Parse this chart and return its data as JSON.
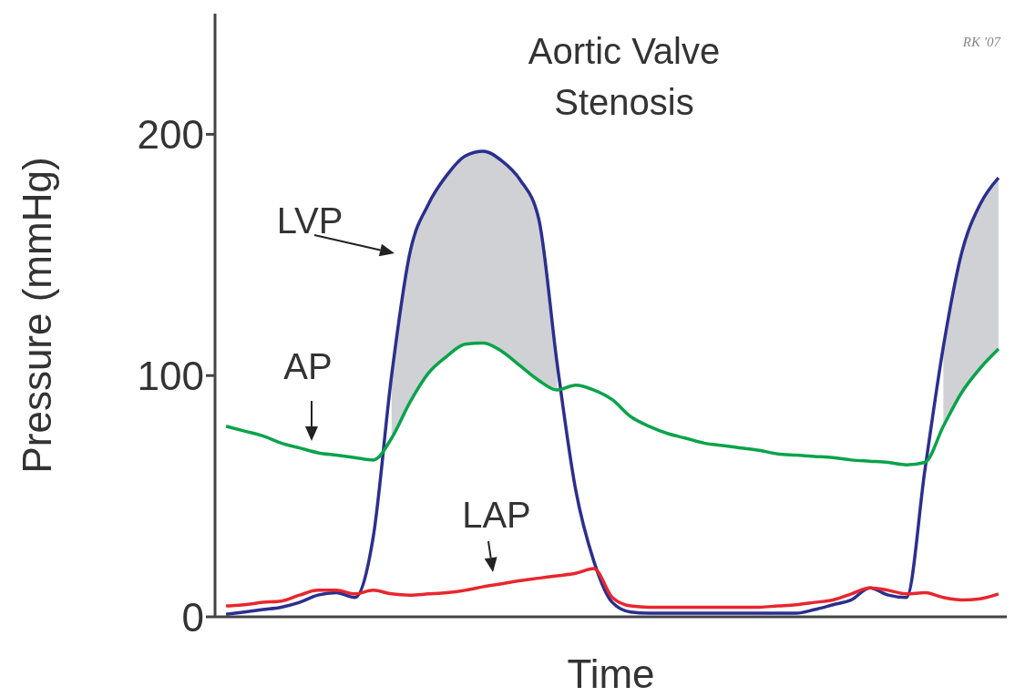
{
  "chart_data": {
    "type": "line",
    "title": "Aortic Valve Stenosis",
    "xlabel": "Time",
    "ylabel": "Pressure (mmHg)",
    "annotations": [
      "RK '07"
    ],
    "categories": [
      null,
      null,
      null,
      null,
      null,
      null,
      null,
      null,
      null,
      null,
      null,
      null,
      null,
      null,
      null,
      null,
      null,
      null,
      null,
      null,
      null,
      null,
      null,
      null,
      null,
      null,
      null,
      null,
      null,
      null,
      null,
      null,
      null,
      null,
      null,
      null,
      null,
      null,
      null,
      null,
      null,
      null,
      null
    ],
    "series": [
      {
        "name": "LVP",
        "color": "#2b2f8f",
        "values": [
          1,
          2,
          3,
          4,
          6,
          9,
          10,
          8,
          33,
          100,
          151,
          171,
          183,
          191,
          193,
          189,
          181,
          165,
          105,
          53,
          23,
          6,
          2,
          1.5,
          1.5,
          1.5,
          1.5,
          1.5,
          1.5,
          1.5,
          1.5,
          1.5,
          3,
          5,
          7,
          12,
          9,
          8,
          61,
          112,
          151,
          171,
          182
        ],
        "lower": [
          null,
          null,
          null,
          null,
          null,
          null,
          null,
          null,
          null,
          74,
          89,
          101,
          108,
          113,
          113.5,
          110,
          104,
          98,
          94,
          null,
          null,
          null,
          null,
          null,
          null,
          null,
          null,
          null,
          null,
          null,
          null,
          null,
          null,
          null,
          null,
          null,
          null,
          null,
          null,
          79,
          93,
          103,
          111
        ],
        "upper": [
          null,
          null,
          null,
          null,
          null,
          null,
          null,
          null,
          null,
          100,
          151,
          171,
          183,
          191,
          193,
          189,
          181,
          165,
          105,
          null,
          null,
          null,
          null,
          null,
          null,
          null,
          null,
          null,
          null,
          null,
          null,
          null,
          null,
          null,
          null,
          null,
          null,
          null,
          null,
          112,
          151,
          171,
          182
        ]
      },
      {
        "name": "AP",
        "color": "#0aa34a",
        "values": [
          79,
          77,
          75,
          72,
          70,
          68,
          67,
          66,
          65,
          74,
          89,
          101,
          108,
          113,
          113.5,
          110,
          104,
          98,
          94,
          96,
          94,
          90,
          83,
          79,
          76,
          74,
          72,
          71,
          70,
          69,
          67.5,
          67,
          66.5,
          66,
          65,
          64.5,
          64,
          63,
          64,
          79,
          93,
          103,
          111
        ]
      },
      {
        "name": "LAP",
        "color": "#e8262d",
        "values": [
          4.5,
          5,
          6,
          6.5,
          9,
          11,
          11,
          9.5,
          11,
          9.5,
          9,
          9.5,
          10,
          11,
          12.5,
          13.7,
          15,
          16,
          17,
          18,
          20,
          8,
          4.5,
          4,
          4,
          4,
          4,
          4,
          4,
          4,
          4.5,
          5,
          6,
          7,
          9.5,
          12,
          11,
          9.5,
          10,
          8,
          7,
          7.5,
          9.5
        ]
      }
    ],
    "ylim": [
      0,
      250
    ],
    "yticks": [
      0,
      100,
      200
    ],
    "marker": "none",
    "line_style": "solid"
  }
}
